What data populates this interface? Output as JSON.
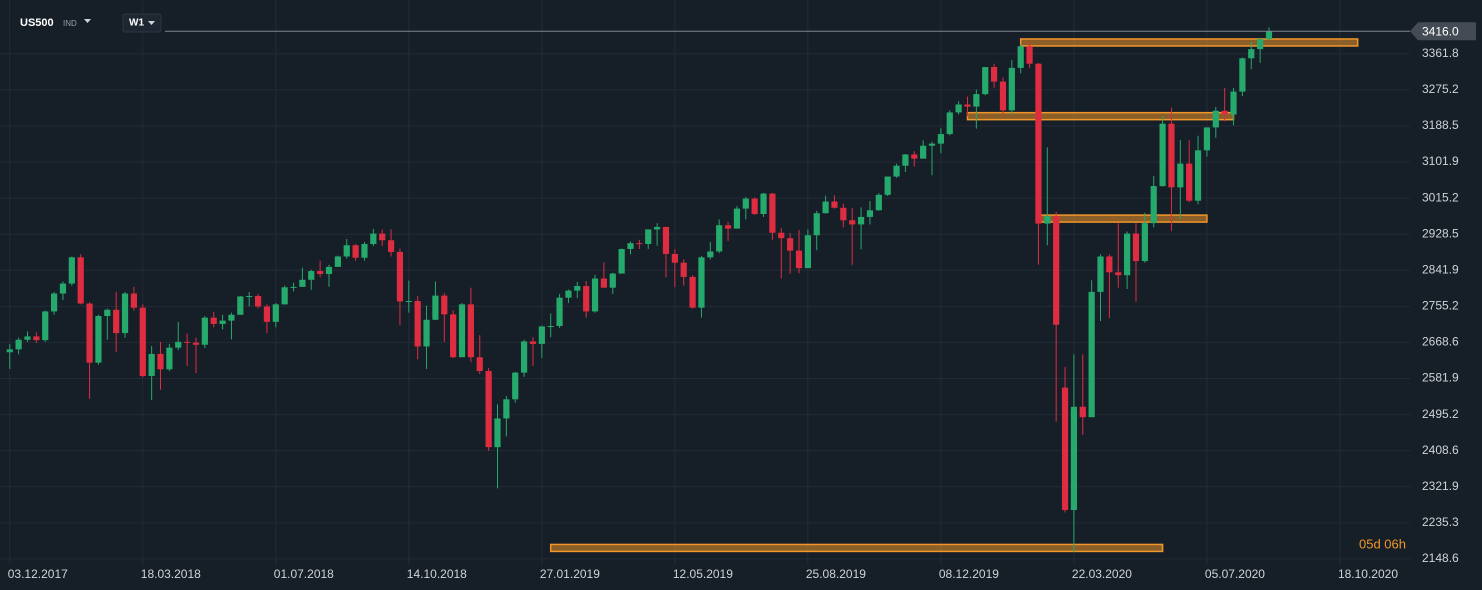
{
  "header": {
    "symbol": "US500",
    "market": "IND",
    "interval": "W1"
  },
  "chart_data": {
    "type": "candlestick",
    "up_color": "#26a96c",
    "down_color": "#de2d41",
    "grid": true,
    "xlim": [
      -1.1,
      157.9
    ],
    "ylim": [
      2134,
      3491
    ],
    "yticks": [
      2148.6,
      2235.3,
      2321.9,
      2408.6,
      2495.2,
      2581.9,
      2668.6,
      2755.2,
      2841.9,
      2928.5,
      3015.2,
      3101.9,
      3188.5,
      3275.2,
      3361.8
    ],
    "xticks": [
      {
        "value": 0,
        "label": "03.12.2017"
      },
      {
        "value": 15,
        "label": "18.03.2018"
      },
      {
        "value": 30,
        "label": "01.07.2018"
      },
      {
        "value": 45,
        "label": "14.10.2018"
      },
      {
        "value": 60,
        "label": "27.01.2019"
      },
      {
        "value": 75,
        "label": "12.05.2019"
      },
      {
        "value": 90,
        "label": "25.08.2019"
      },
      {
        "value": 105,
        "label": "08.12.2019"
      },
      {
        "value": 120,
        "label": "22.03.2020"
      },
      {
        "value": 135,
        "label": "05.07.2020"
      },
      {
        "value": 150,
        "label": "18.10.2020"
      }
    ],
    "last_price": {
      "value": 3416,
      "label": "3416.0"
    },
    "countdown": "05d 06h",
    "zone_color": "#f0962a",
    "zones": [
      {
        "level": 3389,
        "from": 114,
        "to": 152
      },
      {
        "level": 3212,
        "from": 108,
        "to": 138
      },
      {
        "level": 2966,
        "from": 116,
        "to": 135
      },
      {
        "level": 2175,
        "from": 61,
        "to": 130
      }
    ],
    "candles": [
      [
        2645,
        2665,
        2605,
        2652
      ],
      [
        2652,
        2680,
        2640,
        2675
      ],
      [
        2675,
        2695,
        2670,
        2683
      ],
      [
        2683,
        2693,
        2667,
        2674
      ],
      [
        2674,
        2745,
        2670,
        2743
      ],
      [
        2743,
        2790,
        2735,
        2786
      ],
      [
        2786,
        2815,
        2770,
        2810
      ],
      [
        2810,
        2875,
        2805,
        2873
      ],
      [
        2873,
        2880,
        2760,
        2762
      ],
      [
        2762,
        2765,
        2533,
        2620
      ],
      [
        2620,
        2735,
        2615,
        2732
      ],
      [
        2732,
        2750,
        2675,
        2747
      ],
      [
        2747,
        2790,
        2645,
        2691
      ],
      [
        2691,
        2790,
        2680,
        2786
      ],
      [
        2786,
        2802,
        2745,
        2752
      ],
      [
        2752,
        2760,
        2585,
        2588
      ],
      [
        2588,
        2660,
        2530,
        2641
      ],
      [
        2641,
        2670,
        2555,
        2604
      ],
      [
        2604,
        2665,
        2600,
        2656
      ],
      [
        2656,
        2718,
        2650,
        2670
      ],
      [
        2670,
        2690,
        2612,
        2668
      ],
      [
        2668,
        2680,
        2595,
        2663
      ],
      [
        2663,
        2732,
        2655,
        2728
      ],
      [
        2728,
        2742,
        2705,
        2713
      ],
      [
        2713,
        2735,
        2700,
        2721
      ],
      [
        2721,
        2740,
        2676,
        2735
      ],
      [
        2735,
        2780,
        2735,
        2779
      ],
      [
        2779,
        2790,
        2755,
        2780
      ],
      [
        2780,
        2785,
        2750,
        2755
      ],
      [
        2755,
        2760,
        2691,
        2718
      ],
      [
        2718,
        2763,
        2705,
        2760
      ],
      [
        2760,
        2805,
        2760,
        2801
      ],
      [
        2801,
        2812,
        2791,
        2802
      ],
      [
        2802,
        2848,
        2802,
        2819
      ],
      [
        2819,
        2843,
        2795,
        2840
      ],
      [
        2840,
        2865,
        2825,
        2833
      ],
      [
        2833,
        2855,
        2802,
        2850
      ],
      [
        2850,
        2877,
        2850,
        2875
      ],
      [
        2875,
        2917,
        2870,
        2902
      ],
      [
        2902,
        2905,
        2865,
        2872
      ],
      [
        2872,
        2910,
        2865,
        2905
      ],
      [
        2905,
        2941,
        2900,
        2930
      ],
      [
        2930,
        2940,
        2900,
        2914
      ],
      [
        2914,
        2940,
        2875,
        2886
      ],
      [
        2886,
        2894,
        2710,
        2767
      ],
      [
        2767,
        2817,
        2740,
        2768
      ],
      [
        2768,
        2780,
        2628,
        2659
      ],
      [
        2659,
        2757,
        2605,
        2723
      ],
      [
        2723,
        2815,
        2722,
        2781
      ],
      [
        2781,
        2787,
        2670,
        2736
      ],
      [
        2736,
        2746,
        2631,
        2633
      ],
      [
        2633,
        2763,
        2636,
        2760
      ],
      [
        2760,
        2800,
        2621,
        2633
      ],
      [
        2633,
        2686,
        2593,
        2600
      ],
      [
        2600,
        2607,
        2408,
        2417
      ],
      [
        2417,
        2520,
        2318,
        2486
      ],
      [
        2486,
        2540,
        2443,
        2532
      ],
      [
        2532,
        2598,
        2524,
        2596
      ],
      [
        2596,
        2675,
        2586,
        2671
      ],
      [
        2671,
        2681,
        2612,
        2665
      ],
      [
        2665,
        2709,
        2631,
        2707
      ],
      [
        2707,
        2738,
        2681,
        2708
      ],
      [
        2708,
        2785,
        2703,
        2776
      ],
      [
        2776,
        2796,
        2763,
        2793
      ],
      [
        2793,
        2814,
        2775,
        2804
      ],
      [
        2804,
        2816,
        2728,
        2743
      ],
      [
        2743,
        2831,
        2740,
        2822
      ],
      [
        2822,
        2861,
        2800,
        2800
      ],
      [
        2800,
        2836,
        2785,
        2834
      ],
      [
        2834,
        2894,
        2834,
        2893
      ],
      [
        2893,
        2911,
        2880,
        2907
      ],
      [
        2907,
        2915,
        2893,
        2905
      ],
      [
        2905,
        2940,
        2893,
        2940
      ],
      [
        2940,
        2955,
        2901,
        2946
      ],
      [
        2946,
        2946,
        2825,
        2881
      ],
      [
        2881,
        2892,
        2801,
        2860
      ],
      [
        2860,
        2868,
        2805,
        2826
      ],
      [
        2826,
        2830,
        2750,
        2752
      ],
      [
        2752,
        2876,
        2728,
        2873
      ],
      [
        2873,
        2910,
        2868,
        2887
      ],
      [
        2887,
        2964,
        2883,
        2950
      ],
      [
        2950,
        2958,
        2912,
        2942
      ],
      [
        2942,
        2996,
        2942,
        2990
      ],
      [
        2990,
        3018,
        2964,
        3014
      ],
      [
        3014,
        3017,
        2975,
        2977
      ],
      [
        2977,
        3028,
        2970,
        3026
      ],
      [
        3026,
        3028,
        2914,
        2932
      ],
      [
        2932,
        2944,
        2822,
        2919
      ],
      [
        2919,
        2931,
        2834,
        2889
      ],
      [
        2889,
        2939,
        2835,
        2847
      ],
      [
        2847,
        2940,
        2853,
        2926
      ],
      [
        2926,
        2985,
        2890,
        2979
      ],
      [
        2979,
        3021,
        2978,
        3007
      ],
      [
        3007,
        3022,
        2990,
        2992
      ],
      [
        2992,
        3002,
        2945,
        2962
      ],
      [
        2962,
        2992,
        2855,
        2952
      ],
      [
        2952,
        2993,
        2892,
        2970
      ],
      [
        2970,
        3008,
        2952,
        2986
      ],
      [
        2986,
        3027,
        2985,
        3023
      ],
      [
        3023,
        3067,
        3020,
        3067
      ],
      [
        3067,
        3098,
        3064,
        3093
      ],
      [
        3093,
        3121,
        3078,
        3120
      ],
      [
        3120,
        3128,
        3091,
        3110
      ],
      [
        3110,
        3154,
        3110,
        3141
      ],
      [
        3141,
        3151,
        3070,
        3146
      ],
      [
        3146,
        3183,
        3123,
        3169
      ],
      [
        3169,
        3226,
        3166,
        3221
      ],
      [
        3221,
        3248,
        3216,
        3240
      ],
      [
        3240,
        3259,
        3212,
        3235
      ],
      [
        3235,
        3276,
        3182,
        3265
      ],
      [
        3265,
        3330,
        3262,
        3330
      ],
      [
        3330,
        3338,
        3280,
        3295
      ],
      [
        3295,
        3305,
        3214,
        3226
      ],
      [
        3226,
        3347,
        3216,
        3328
      ],
      [
        3328,
        3385,
        3315,
        3380
      ],
      [
        3380,
        3393,
        3328,
        3338
      ],
      [
        3338,
        3340,
        2855,
        2954
      ],
      [
        2954,
        3137,
        2902,
        2972
      ],
      [
        2972,
        2982,
        2478,
        2711
      ],
      [
        2560,
        2610,
        2260,
        2266
      ],
      [
        2266,
        2640,
        2165,
        2514
      ],
      [
        2514,
        2640,
        2447,
        2489
      ],
      [
        2489,
        2818,
        2490,
        2790
      ],
      [
        2790,
        2880,
        2720,
        2875
      ],
      [
        2875,
        2880,
        2727,
        2837
      ],
      [
        2837,
        2955,
        2800,
        2830
      ],
      [
        2830,
        2935,
        2797,
        2930
      ],
      [
        2930,
        2955,
        2766,
        2864
      ],
      [
        2864,
        2980,
        2860,
        2955
      ],
      [
        2955,
        3068,
        2945,
        3044
      ],
      [
        3044,
        3211,
        3043,
        3194
      ],
      [
        3194,
        3233,
        2936,
        3041
      ],
      [
        3041,
        3155,
        2965,
        3098
      ],
      [
        3098,
        3154,
        3005,
        3009
      ],
      [
        3009,
        3165,
        3000,
        3130
      ],
      [
        3130,
        3185,
        3115,
        3185
      ],
      [
        3185,
        3234,
        3160,
        3225
      ],
      [
        3225,
        3280,
        3200,
        3216
      ],
      [
        3216,
        3280,
        3190,
        3271
      ],
      [
        3271,
        3353,
        3260,
        3351
      ],
      [
        3351,
        3390,
        3325,
        3373
      ],
      [
        3373,
        3400,
        3340,
        3397
      ],
      [
        3397,
        3425,
        3395,
        3416
      ]
    ]
  }
}
